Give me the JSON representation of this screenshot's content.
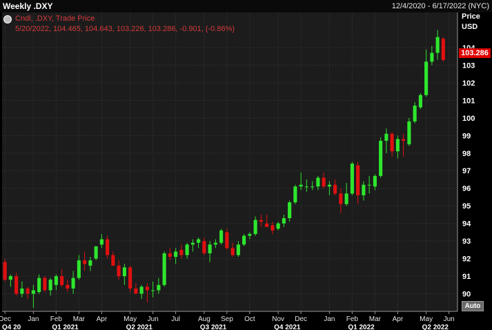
{
  "header": {
    "title": "Weekly .DXY",
    "date_range": "12/4/2020 - 6/17/2022 (NYC)"
  },
  "legend": {
    "line1": "Cndl, .DXY, Trade Price",
    "line2": "5/20/2022, 104.465, 104.643, 103.226, 103.286, -0.901, (-0.86%)"
  },
  "axis": {
    "header_price": "Price",
    "header_currency": "USD",
    "last_price": "103.286",
    "auto_label": "Auto"
  },
  "colors": {
    "up": "#2ee62e",
    "down": "#e01010",
    "background": "#1c1c1c",
    "grid": "#3a3a3a",
    "last_price_tag": "#e00000"
  },
  "chart_data": {
    "type": "candlestick",
    "title": "Weekly .DXY",
    "ylim": [
      89,
      106
    ],
    "y_ticks": [
      90,
      91,
      92,
      93,
      94,
      95,
      96,
      97,
      98,
      99,
      100,
      101,
      102,
      103,
      104
    ],
    "grid": true,
    "x_month_labels": [
      {
        "label": "Dec",
        "index": 0
      },
      {
        "label": "Jan",
        "index": 5
      },
      {
        "label": "Feb",
        "index": 9
      },
      {
        "label": "Mar",
        "index": 13
      },
      {
        "label": "Apr",
        "index": 17
      },
      {
        "label": "May",
        "index": 22
      },
      {
        "label": "Jun",
        "index": 26
      },
      {
        "label": "Jul",
        "index": 30
      },
      {
        "label": "Aug",
        "index": 35
      },
      {
        "label": "Sep",
        "index": 39
      },
      {
        "label": "Oct",
        "index": 43
      },
      {
        "label": "Nov",
        "index": 48
      },
      {
        "label": "Dec",
        "index": 52
      },
      {
        "label": "Jan",
        "index": 57
      },
      {
        "label": "Feb",
        "index": 61
      },
      {
        "label": "Mar",
        "index": 65
      },
      {
        "label": "Apr",
        "index": 69
      },
      {
        "label": "May",
        "index": 74
      },
      {
        "label": "Jun",
        "index": 78
      }
    ],
    "x_quarter_labels": [
      {
        "label": "Q4 20",
        "index": 0
      },
      {
        "label": "Q1 2021",
        "index": 9
      },
      {
        "label": "Q2 2021",
        "index": 22
      },
      {
        "label": "Q3 2021",
        "index": 35
      },
      {
        "label": "Q4 2021",
        "index": 48
      },
      {
        "label": "Q1 2022",
        "index": 61
      },
      {
        "label": "Q2 2022",
        "index": 74
      }
    ],
    "slots": 80,
    "candles": [
      {
        "o": 91.8,
        "h": 92.0,
        "l": 90.7,
        "c": 90.8
      },
      {
        "o": 90.8,
        "h": 91.1,
        "l": 90.4,
        "c": 91.0
      },
      {
        "o": 91.0,
        "h": 91.2,
        "l": 89.9,
        "c": 90.0
      },
      {
        "o": 90.0,
        "h": 90.7,
        "l": 89.8,
        "c": 90.3
      },
      {
        "o": 90.3,
        "h": 90.4,
        "l": 89.7,
        "c": 90.0
      },
      {
        "o": 90.0,
        "h": 90.5,
        "l": 89.2,
        "c": 90.2
      },
      {
        "o": 90.1,
        "h": 91.1,
        "l": 90.0,
        "c": 90.9
      },
      {
        "o": 90.9,
        "h": 91.0,
        "l": 90.1,
        "c": 90.2
      },
      {
        "o": 90.2,
        "h": 90.9,
        "l": 89.9,
        "c": 90.8
      },
      {
        "o": 90.5,
        "h": 91.1,
        "l": 90.2,
        "c": 91.0
      },
      {
        "o": 91.0,
        "h": 91.4,
        "l": 90.4,
        "c": 90.5
      },
      {
        "o": 90.5,
        "h": 90.8,
        "l": 90.1,
        "c": 90.3
      },
      {
        "o": 90.3,
        "h": 91.3,
        "l": 90.0,
        "c": 90.9
      },
      {
        "o": 90.9,
        "h": 92.2,
        "l": 90.8,
        "c": 91.9
      },
      {
        "o": 91.9,
        "h": 92.4,
        "l": 91.3,
        "c": 91.7
      },
      {
        "o": 91.6,
        "h": 92.1,
        "l": 91.3,
        "c": 91.9
      },
      {
        "o": 92.0,
        "h": 92.7,
        "l": 91.9,
        "c": 92.7
      },
      {
        "o": 92.8,
        "h": 93.4,
        "l": 92.6,
        "c": 93.1
      },
      {
        "o": 93.1,
        "h": 93.3,
        "l": 92.0,
        "c": 92.2
      },
      {
        "o": 92.2,
        "h": 92.4,
        "l": 91.6,
        "c": 91.6
      },
      {
        "o": 91.6,
        "h": 91.9,
        "l": 90.8,
        "c": 91.0
      },
      {
        "o": 91.0,
        "h": 91.7,
        "l": 90.5,
        "c": 91.5
      },
      {
        "o": 91.5,
        "h": 91.6,
        "l": 90.1,
        "c": 90.3
      },
      {
        "o": 90.3,
        "h": 90.6,
        "l": 90.0,
        "c": 90.0
      },
      {
        "o": 90.0,
        "h": 90.5,
        "l": 89.7,
        "c": 90.4
      },
      {
        "o": 90.4,
        "h": 90.6,
        "l": 89.5,
        "c": 90.2
      },
      {
        "o": 90.2,
        "h": 90.7,
        "l": 89.8,
        "c": 90.2
      },
      {
        "o": 90.2,
        "h": 90.9,
        "l": 90.0,
        "c": 90.5
      },
      {
        "o": 90.5,
        "h": 92.4,
        "l": 90.4,
        "c": 92.3
      },
      {
        "o": 92.3,
        "h": 92.6,
        "l": 91.9,
        "c": 92.1
      },
      {
        "o": 92.1,
        "h": 92.6,
        "l": 91.7,
        "c": 92.4
      },
      {
        "o": 92.5,
        "h": 92.8,
        "l": 92.0,
        "c": 92.2
      },
      {
        "o": 92.2,
        "h": 92.9,
        "l": 92.0,
        "c": 92.8
      },
      {
        "o": 92.8,
        "h": 93.1,
        "l": 92.4,
        "c": 92.9
      },
      {
        "o": 92.9,
        "h": 93.2,
        "l": 92.6,
        "c": 93.1
      },
      {
        "o": 93.0,
        "h": 93.2,
        "l": 92.2,
        "c": 92.3
      },
      {
        "o": 92.3,
        "h": 93.0,
        "l": 91.8,
        "c": 92.8
      },
      {
        "o": 92.8,
        "h": 93.1,
        "l": 92.6,
        "c": 92.9
      },
      {
        "o": 92.9,
        "h": 93.7,
        "l": 92.8,
        "c": 93.6
      },
      {
        "o": 93.5,
        "h": 93.7,
        "l": 92.5,
        "c": 92.6
      },
      {
        "o": 92.6,
        "h": 92.9,
        "l": 92.1,
        "c": 92.2
      },
      {
        "o": 92.2,
        "h": 93.0,
        "l": 92.1,
        "c": 92.8
      },
      {
        "o": 92.8,
        "h": 93.4,
        "l": 92.7,
        "c": 93.3
      },
      {
        "o": 93.3,
        "h": 93.5,
        "l": 93.1,
        "c": 93.4
      },
      {
        "o": 93.4,
        "h": 94.4,
        "l": 93.3,
        "c": 94.2
      },
      {
        "o": 94.2,
        "h": 94.5,
        "l": 93.8,
        "c": 94.1
      },
      {
        "o": 94.0,
        "h": 94.5,
        "l": 93.8,
        "c": 93.8
      },
      {
        "o": 93.9,
        "h": 94.1,
        "l": 93.4,
        "c": 93.6
      },
      {
        "o": 93.7,
        "h": 94.1,
        "l": 93.6,
        "c": 94.0
      },
      {
        "o": 94.0,
        "h": 94.5,
        "l": 93.8,
        "c": 94.3
      },
      {
        "o": 94.3,
        "h": 95.3,
        "l": 94.1,
        "c": 95.2
      },
      {
        "o": 95.2,
        "h": 96.2,
        "l": 95.1,
        "c": 96.1
      },
      {
        "o": 96.1,
        "h": 96.9,
        "l": 95.9,
        "c": 96.2
      },
      {
        "o": 96.1,
        "h": 96.5,
        "l": 95.8,
        "c": 96.1
      },
      {
        "o": 96.1,
        "h": 96.4,
        "l": 95.9,
        "c": 96.1
      },
      {
        "o": 96.1,
        "h": 96.7,
        "l": 95.9,
        "c": 96.6
      },
      {
        "o": 96.6,
        "h": 96.9,
        "l": 96.0,
        "c": 96.1
      },
      {
        "o": 96.1,
        "h": 96.4,
        "l": 95.6,
        "c": 96.2
      },
      {
        "o": 96.2,
        "h": 96.5,
        "l": 95.6,
        "c": 95.7
      },
      {
        "o": 95.7,
        "h": 96.0,
        "l": 94.6,
        "c": 95.1
      },
      {
        "o": 95.1,
        "h": 96.3,
        "l": 95.0,
        "c": 95.7
      },
      {
        "o": 95.7,
        "h": 97.5,
        "l": 95.6,
        "c": 97.4
      },
      {
        "o": 97.3,
        "h": 97.5,
        "l": 95.1,
        "c": 95.6
      },
      {
        "o": 95.6,
        "h": 96.4,
        "l": 95.3,
        "c": 96.2
      },
      {
        "o": 96.2,
        "h": 96.7,
        "l": 95.7,
        "c": 96.2
      },
      {
        "o": 96.1,
        "h": 96.8,
        "l": 95.9,
        "c": 96.7
      },
      {
        "o": 96.7,
        "h": 98.9,
        "l": 96.6,
        "c": 98.7
      },
      {
        "o": 98.7,
        "h": 99.4,
        "l": 98.0,
        "c": 99.1
      },
      {
        "o": 99.1,
        "h": 99.2,
        "l": 97.8,
        "c": 98.1
      },
      {
        "o": 98.1,
        "h": 99.0,
        "l": 97.7,
        "c": 98.8
      },
      {
        "o": 98.8,
        "h": 99.1,
        "l": 97.8,
        "c": 98.7
      },
      {
        "o": 98.5,
        "h": 100.0,
        "l": 98.4,
        "c": 99.8
      },
      {
        "o": 99.8,
        "h": 100.9,
        "l": 99.7,
        "c": 100.7
      },
      {
        "o": 100.6,
        "h": 101.4,
        "l": 100.5,
        "c": 101.3
      },
      {
        "o": 101.3,
        "h": 103.9,
        "l": 101.2,
        "c": 103.2
      },
      {
        "o": 103.2,
        "h": 104.1,
        "l": 103.0,
        "c": 103.7
      },
      {
        "o": 103.7,
        "h": 105.0,
        "l": 103.3,
        "c": 104.6
      },
      {
        "o": 104.5,
        "h": 104.6,
        "l": 103.2,
        "c": 103.3
      }
    ]
  }
}
